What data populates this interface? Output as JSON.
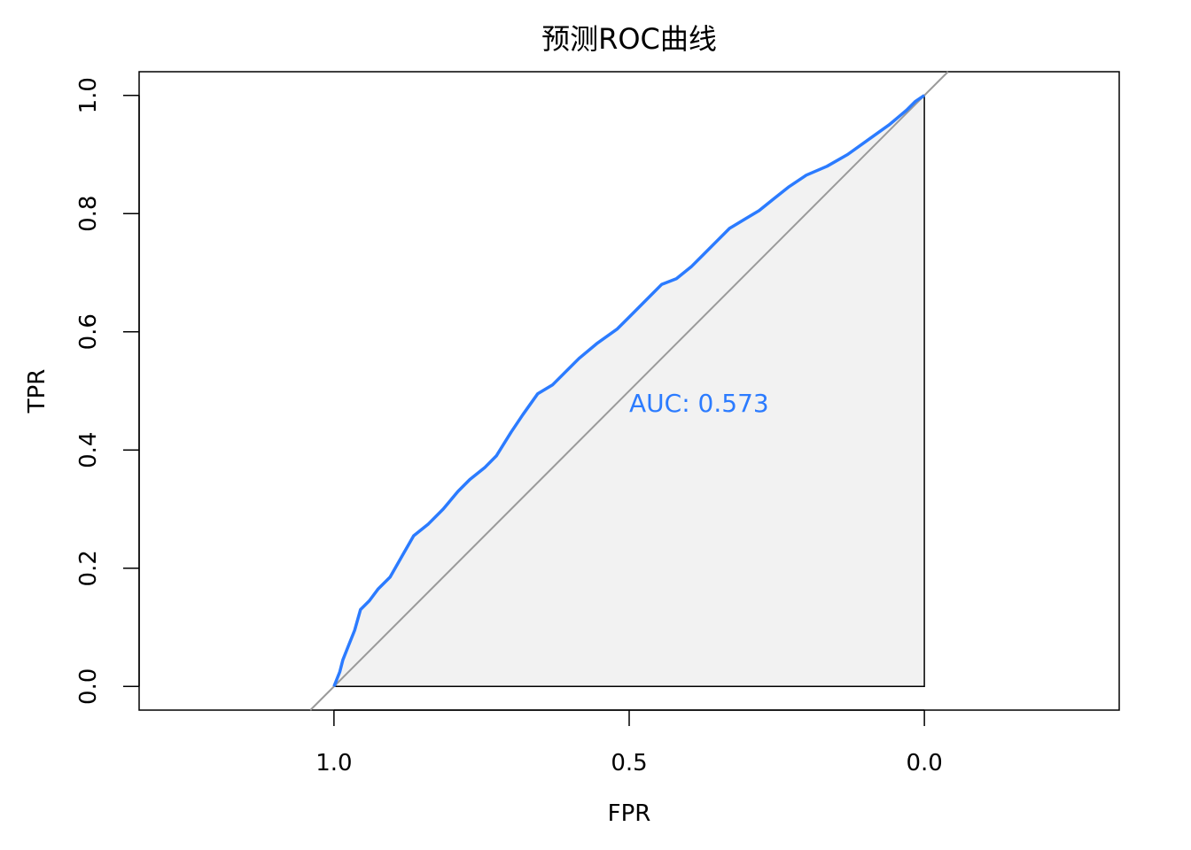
{
  "chart_data": {
    "type": "line",
    "title": "预测ROC曲线",
    "xlabel": "FPR",
    "ylabel": "TPR",
    "x_axis_reversed": true,
    "xlim": [
      1.33,
      -0.33
    ],
    "ylim": [
      -0.04,
      1.04
    ],
    "x_ticks": [
      1.0,
      0.5,
      0.0
    ],
    "x_tick_labels": [
      "1.0",
      "0.5",
      "0.0"
    ],
    "y_ticks": [
      0.0,
      0.2,
      0.4,
      0.6,
      0.8,
      1.0
    ],
    "y_tick_labels": [
      "0.0",
      "0.2",
      "0.4",
      "0.6",
      "0.8",
      "1.0"
    ],
    "grid": false,
    "auc_label": "AUC: 0.573",
    "auc_label_position": {
      "x": 0.5,
      "y": 0.48
    },
    "colors": {
      "curve": "#2b7bff",
      "auc_text": "#2b7bff",
      "fill": "#f2f2f2",
      "diagonal": "#9a9a9a",
      "frame": "#000000"
    },
    "series": [
      {
        "specificity": [
          1.0,
          0.99,
          0.985,
          0.975,
          0.965,
          0.955,
          0.94,
          0.925,
          0.905,
          0.885,
          0.865,
          0.84,
          0.815,
          0.79,
          0.77,
          0.745,
          0.725,
          0.7,
          0.68,
          0.655,
          0.63,
          0.615,
          0.585,
          0.555,
          0.52,
          0.5,
          0.47,
          0.445,
          0.42,
          0.395,
          0.375,
          0.35,
          0.33,
          0.305,
          0.28,
          0.255,
          0.23,
          0.2,
          0.165,
          0.13,
          0.095,
          0.06,
          0.03,
          0.015,
          0.0
        ],
        "sensitivity": [
          0.0,
          0.025,
          0.045,
          0.07,
          0.095,
          0.13,
          0.145,
          0.165,
          0.185,
          0.22,
          0.255,
          0.275,
          0.3,
          0.33,
          0.35,
          0.37,
          0.39,
          0.43,
          0.46,
          0.495,
          0.51,
          0.525,
          0.555,
          0.58,
          0.605,
          0.625,
          0.655,
          0.68,
          0.69,
          0.71,
          0.73,
          0.755,
          0.775,
          0.79,
          0.805,
          0.825,
          0.845,
          0.865,
          0.88,
          0.9,
          0.925,
          0.95,
          0.975,
          0.99,
          1.0
        ]
      }
    ]
  }
}
